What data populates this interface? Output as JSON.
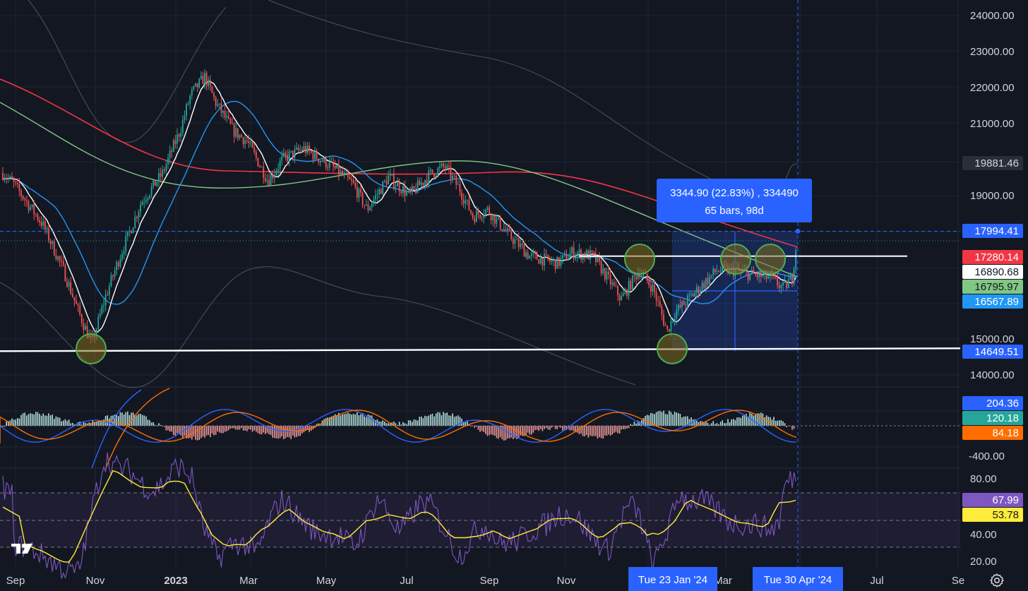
{
  "chart_data": {
    "type": "candlestick",
    "price_axis_labels": [
      "24000.00",
      "23000.00",
      "22000.00",
      "21000.00",
      "19000.00",
      "15000.00",
      "14000.00"
    ],
    "macd_axis_labels": [
      "-400.00"
    ],
    "rsi_axis_labels": [
      "80.00",
      "40.00",
      "20.00"
    ],
    "time_axis_labels": [
      "Sep",
      "Nov",
      "2023",
      "Mar",
      "May",
      "Jul",
      "Sep",
      "Nov",
      "Mar",
      "Jul",
      "Se"
    ],
    "price_badges": [
      {
        "value": "19881.46",
        "bg": "#2a2e39",
        "fg": "#d1d4dc"
      },
      {
        "value": "17994.41",
        "bg": "#2962ff",
        "fg": "#ffffff"
      },
      {
        "value": "17280.14",
        "bg": "#f23645",
        "fg": "#ffffff"
      },
      {
        "value": "16890.68",
        "bg": "#ffffff",
        "fg": "#131722"
      },
      {
        "value": "16795.97",
        "bg": "#81c784",
        "fg": "#131722"
      },
      {
        "value": "16567.89",
        "bg": "#2196f3",
        "fg": "#ffffff"
      },
      {
        "value": "14649.51",
        "bg": "#2962ff",
        "fg": "#ffffff"
      }
    ],
    "macd_badges": [
      {
        "value": "204.36",
        "bg": "#2962ff",
        "fg": "#ffffff"
      },
      {
        "value": "120.18",
        "bg": "#26a69a",
        "fg": "#ffffff"
      },
      {
        "value": "84.18",
        "bg": "#ff6d00",
        "fg": "#ffffff"
      }
    ],
    "rsi_badges": [
      {
        "value": "67.99",
        "bg": "#7e57c2",
        "fg": "#ffffff"
      },
      {
        "value": "53.78",
        "bg": "#ffeb3b",
        "fg": "#131722"
      }
    ],
    "measure": {
      "line1": "3344.90 (22.83%) , 334490",
      "line2": "65 bars, 98d",
      "from_price": 14649.51,
      "to_price": 17994.41
    },
    "crosshair_dates": [
      "Tue 23 Jan '24",
      "Tue 30 Apr '24"
    ],
    "support_level": 14649.51,
    "resistance_level": 17280,
    "highlight_circles": 6,
    "colors": {
      "background": "#131722",
      "up": "#26a69a",
      "down": "#ef5350",
      "ema_fast": "#ffffff",
      "ema_mid": "#2196f3",
      "ema_slow": "#81c784",
      "ema_long": "#f23645",
      "macd": "#2962ff",
      "signal": "#ff6d00",
      "rsi": "#7e57c2",
      "rsi_ma": "#ffeb3b"
    },
    "icons": [
      "tradingview-logo-icon",
      "settings-gear-icon"
    ]
  }
}
